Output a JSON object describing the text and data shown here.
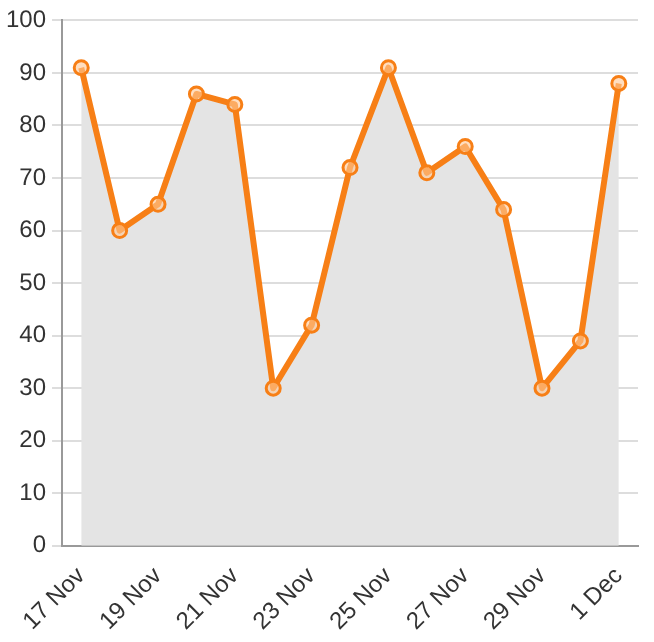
{
  "chart_data": {
    "type": "area",
    "categories": [
      "17 Nov",
      null,
      "19 Nov",
      null,
      "21 Nov",
      null,
      "23 Nov",
      null,
      "25 Nov",
      null,
      "27 Nov",
      null,
      "29 Nov",
      null,
      "1 Dec"
    ],
    "series": [
      {
        "color": "#f77f16",
        "values": [
          91,
          60,
          65,
          86,
          84,
          30,
          42,
          72,
          91,
          71,
          76,
          64,
          30,
          39,
          88
        ]
      }
    ],
    "ylim": [
      0,
      100
    ],
    "yticks": [
      0,
      10,
      20,
      30,
      40,
      50,
      60,
      70,
      80,
      90,
      100
    ],
    "grid": "y",
    "legend": false,
    "marker": "circle",
    "line_style": "solid"
  }
}
